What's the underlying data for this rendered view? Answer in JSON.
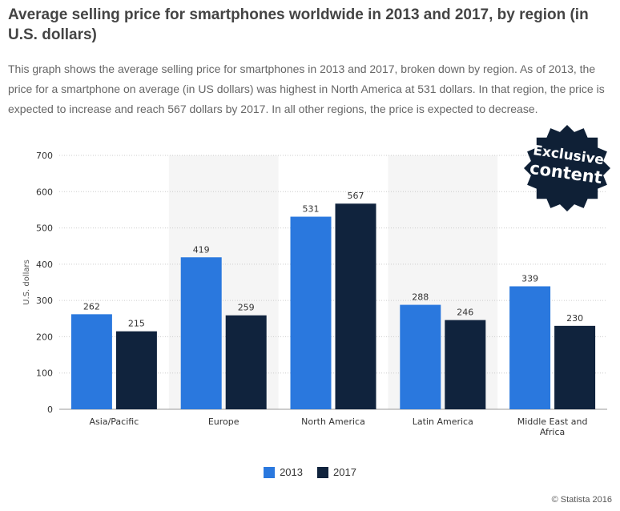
{
  "title": "Average selling price for smartphones worldwide in 2013 and 2017, by region (in U.S. dollars)",
  "description": "This graph shows the average selling price for smartphones in 2013 and 2017, broken down by region. As of 2013, the price for a smartphone on average (in US dollars) was highest in North America at 531 dollars. In that region, the price is expected to increase and reach 567 dollars by 2017. In all other regions, the price is expected to decrease.",
  "badge": {
    "line1": "Exclusive",
    "line2": "content"
  },
  "credit": "© Statista 2016",
  "colors": {
    "series_2013": "#2a78de",
    "series_2017": "#10233d",
    "band": "#f5f5f5",
    "grid": "#cccccc",
    "badge": "#0f2036"
  },
  "chart_data": {
    "type": "bar",
    "categories": [
      "Asia/Pacific",
      "Europe",
      "North America",
      "Latin America",
      "Middle East and Africa"
    ],
    "series": [
      {
        "name": "2013",
        "values": [
          262,
          419,
          531,
          288,
          339
        ]
      },
      {
        "name": "2017",
        "values": [
          215,
          259,
          567,
          246,
          230
        ]
      }
    ],
    "ylabel": "U.S. dollars",
    "xlabel": "",
    "ylim": [
      0,
      700
    ],
    "yticks": [
      0,
      100,
      200,
      300,
      400,
      500,
      600,
      700
    ],
    "grid": true,
    "legend": "bottom-center"
  }
}
